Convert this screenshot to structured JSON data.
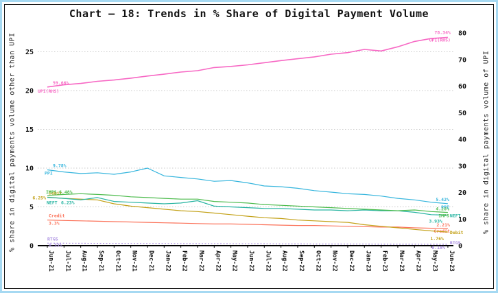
{
  "chart": {
    "title": "Chart – 18: Trends in % Share of Digital Payment Volume",
    "left_axis": {
      "title": "% share in digital payments volume other than UPI",
      "ticks": [
        "0",
        "5",
        "10",
        "15",
        "20",
        "25"
      ]
    },
    "right_axis": {
      "title": "% share in digital payments volume of UPI",
      "ticks": [
        "0",
        "10",
        "20",
        "30",
        "40",
        "50",
        "60",
        "70",
        "80"
      ]
    }
  },
  "chart_data": {
    "type": "line",
    "title": "Chart – 18: Trends in % Share of Digital Payment Volume",
    "xlabel": "",
    "ylabel_left": "% share in digital payments volume other than UPI",
    "ylabel_right": "% share in digital payments volume of UPI",
    "left_ylim": [
      0,
      27
    ],
    "right_ylim": [
      0,
      82
    ],
    "grid": "dotted-horizontal",
    "legend_position": "inline-end-labels",
    "x": [
      "Jun-21",
      "Jul-21",
      "Aug-21",
      "Sep-21",
      "Oct-21",
      "Nov-21",
      "Dec-21",
      "Jan-22",
      "Feb-22",
      "Mar-22",
      "Apr-22",
      "May-22",
      "Jun-22",
      "Jul-22",
      "Aug-22",
      "Sep-22",
      "Oct-22",
      "Nov-22",
      "Dec-22",
      "Jan-23",
      "Feb-23",
      "Mar-23",
      "Apr-23",
      "May-23",
      "Jun-23"
    ],
    "series": [
      {
        "key": "rtgs",
        "name": "RTGS",
        "axis": "left",
        "color": "#a88ce0",
        "line_style": "dotted",
        "start_label": {
          "value": "0.33%",
          "text": "RTGS"
        },
        "end_label": {
          "value": "0.18%",
          "text": "RTGS"
        },
        "values": [
          0.33,
          0.32,
          0.31,
          0.3,
          0.29,
          0.28,
          0.28,
          0.27,
          0.26,
          0.26,
          0.25,
          0.24,
          0.24,
          0.23,
          0.22,
          0.22,
          0.21,
          0.21,
          0.2,
          0.2,
          0.19,
          0.19,
          0.19,
          0.18,
          0.18
        ]
      },
      {
        "key": "credit",
        "name": "Credit Card",
        "axis": "left",
        "color": "#fb7158",
        "line_style": "solid",
        "start_label": {
          "value": "3.3%",
          "text": "Credit"
        },
        "end_label": {
          "value": "2.21%",
          "text": "Credit"
        },
        "values": [
          3.3,
          3.25,
          3.2,
          3.15,
          3.1,
          3.05,
          3.0,
          2.95,
          2.9,
          2.85,
          2.8,
          2.8,
          2.75,
          2.7,
          2.65,
          2.6,
          2.6,
          2.55,
          2.5,
          2.45,
          2.4,
          2.4,
          2.3,
          2.25,
          2.21
        ]
      },
      {
        "key": "debit",
        "name": "Debit Card",
        "axis": "left",
        "color": "#c3a117",
        "line_style": "solid",
        "start_label": {
          "value": "6.25%",
          "text": "Debit"
        },
        "end_label": {
          "value": "1.76%",
          "text": "Debit"
        },
        "values": [
          6.25,
          6.1,
          6.0,
          5.9,
          5.4,
          5.1,
          4.9,
          4.7,
          4.5,
          4.4,
          4.2,
          4.0,
          3.8,
          3.6,
          3.5,
          3.3,
          3.2,
          3.1,
          3.0,
          2.7,
          2.5,
          2.3,
          2.1,
          1.9,
          1.76
        ]
      },
      {
        "key": "neft",
        "name": "NEFT",
        "axis": "left",
        "color": "#24b3a0",
        "line_style": "solid",
        "start_label": {
          "value": "6.23%",
          "text": "NEFT"
        },
        "end_label": {
          "value": "3.93%",
          "text": "NEFT"
        },
        "values": [
          6.23,
          6.1,
          5.9,
          6.2,
          5.7,
          5.6,
          5.5,
          5.4,
          5.5,
          5.8,
          5.1,
          5.0,
          4.9,
          4.8,
          4.8,
          4.7,
          4.6,
          4.6,
          4.5,
          4.6,
          4.5,
          4.5,
          4.3,
          4.0,
          3.93
        ]
      },
      {
        "key": "imps",
        "name": "IMPS",
        "axis": "left",
        "color": "#4cbb4c",
        "line_style": "solid",
        "start_label": {
          "value": "6.48%",
          "text": "IMPS"
        },
        "end_label": {
          "value": "4.28%",
          "text": "IMPS"
        },
        "values": [
          6.48,
          6.6,
          6.7,
          6.6,
          6.5,
          6.3,
          6.2,
          6.1,
          6.0,
          6.0,
          5.7,
          5.6,
          5.5,
          5.3,
          5.2,
          5.1,
          5.0,
          4.9,
          4.8,
          4.7,
          4.6,
          4.5,
          4.6,
          4.4,
          4.28
        ]
      },
      {
        "key": "ppi",
        "name": "PPI",
        "axis": "left",
        "color": "#35b5dd",
        "line_style": "solid",
        "start_label": {
          "value": "9.78%",
          "text": "PPI"
        },
        "end_label": {
          "value": "5.42%",
          "text": "PPI"
        },
        "values": [
          9.78,
          9.5,
          9.3,
          9.4,
          9.2,
          9.5,
          10.0,
          9.0,
          8.8,
          8.6,
          8.3,
          8.4,
          8.1,
          7.7,
          7.6,
          7.4,
          7.1,
          6.9,
          6.7,
          6.6,
          6.4,
          6.1,
          5.9,
          5.6,
          5.42
        ]
      },
      {
        "key": "upi",
        "name": "UPI (RHS)",
        "axis": "right",
        "color": "#f768c4",
        "line_style": "solid",
        "start_label": {
          "value": "59.66%",
          "text": "UPI(RHS)"
        },
        "end_label": {
          "value": "78.34%",
          "text": "UPI(RHS)"
        },
        "values": [
          59.66,
          60.5,
          61.0,
          61.8,
          62.3,
          63.0,
          63.8,
          64.5,
          65.3,
          65.8,
          67.0,
          67.4,
          68.0,
          68.8,
          69.6,
          70.3,
          71.0,
          72.0,
          72.6,
          73.8,
          73.2,
          74.8,
          76.8,
          77.9,
          78.34
        ]
      }
    ]
  }
}
